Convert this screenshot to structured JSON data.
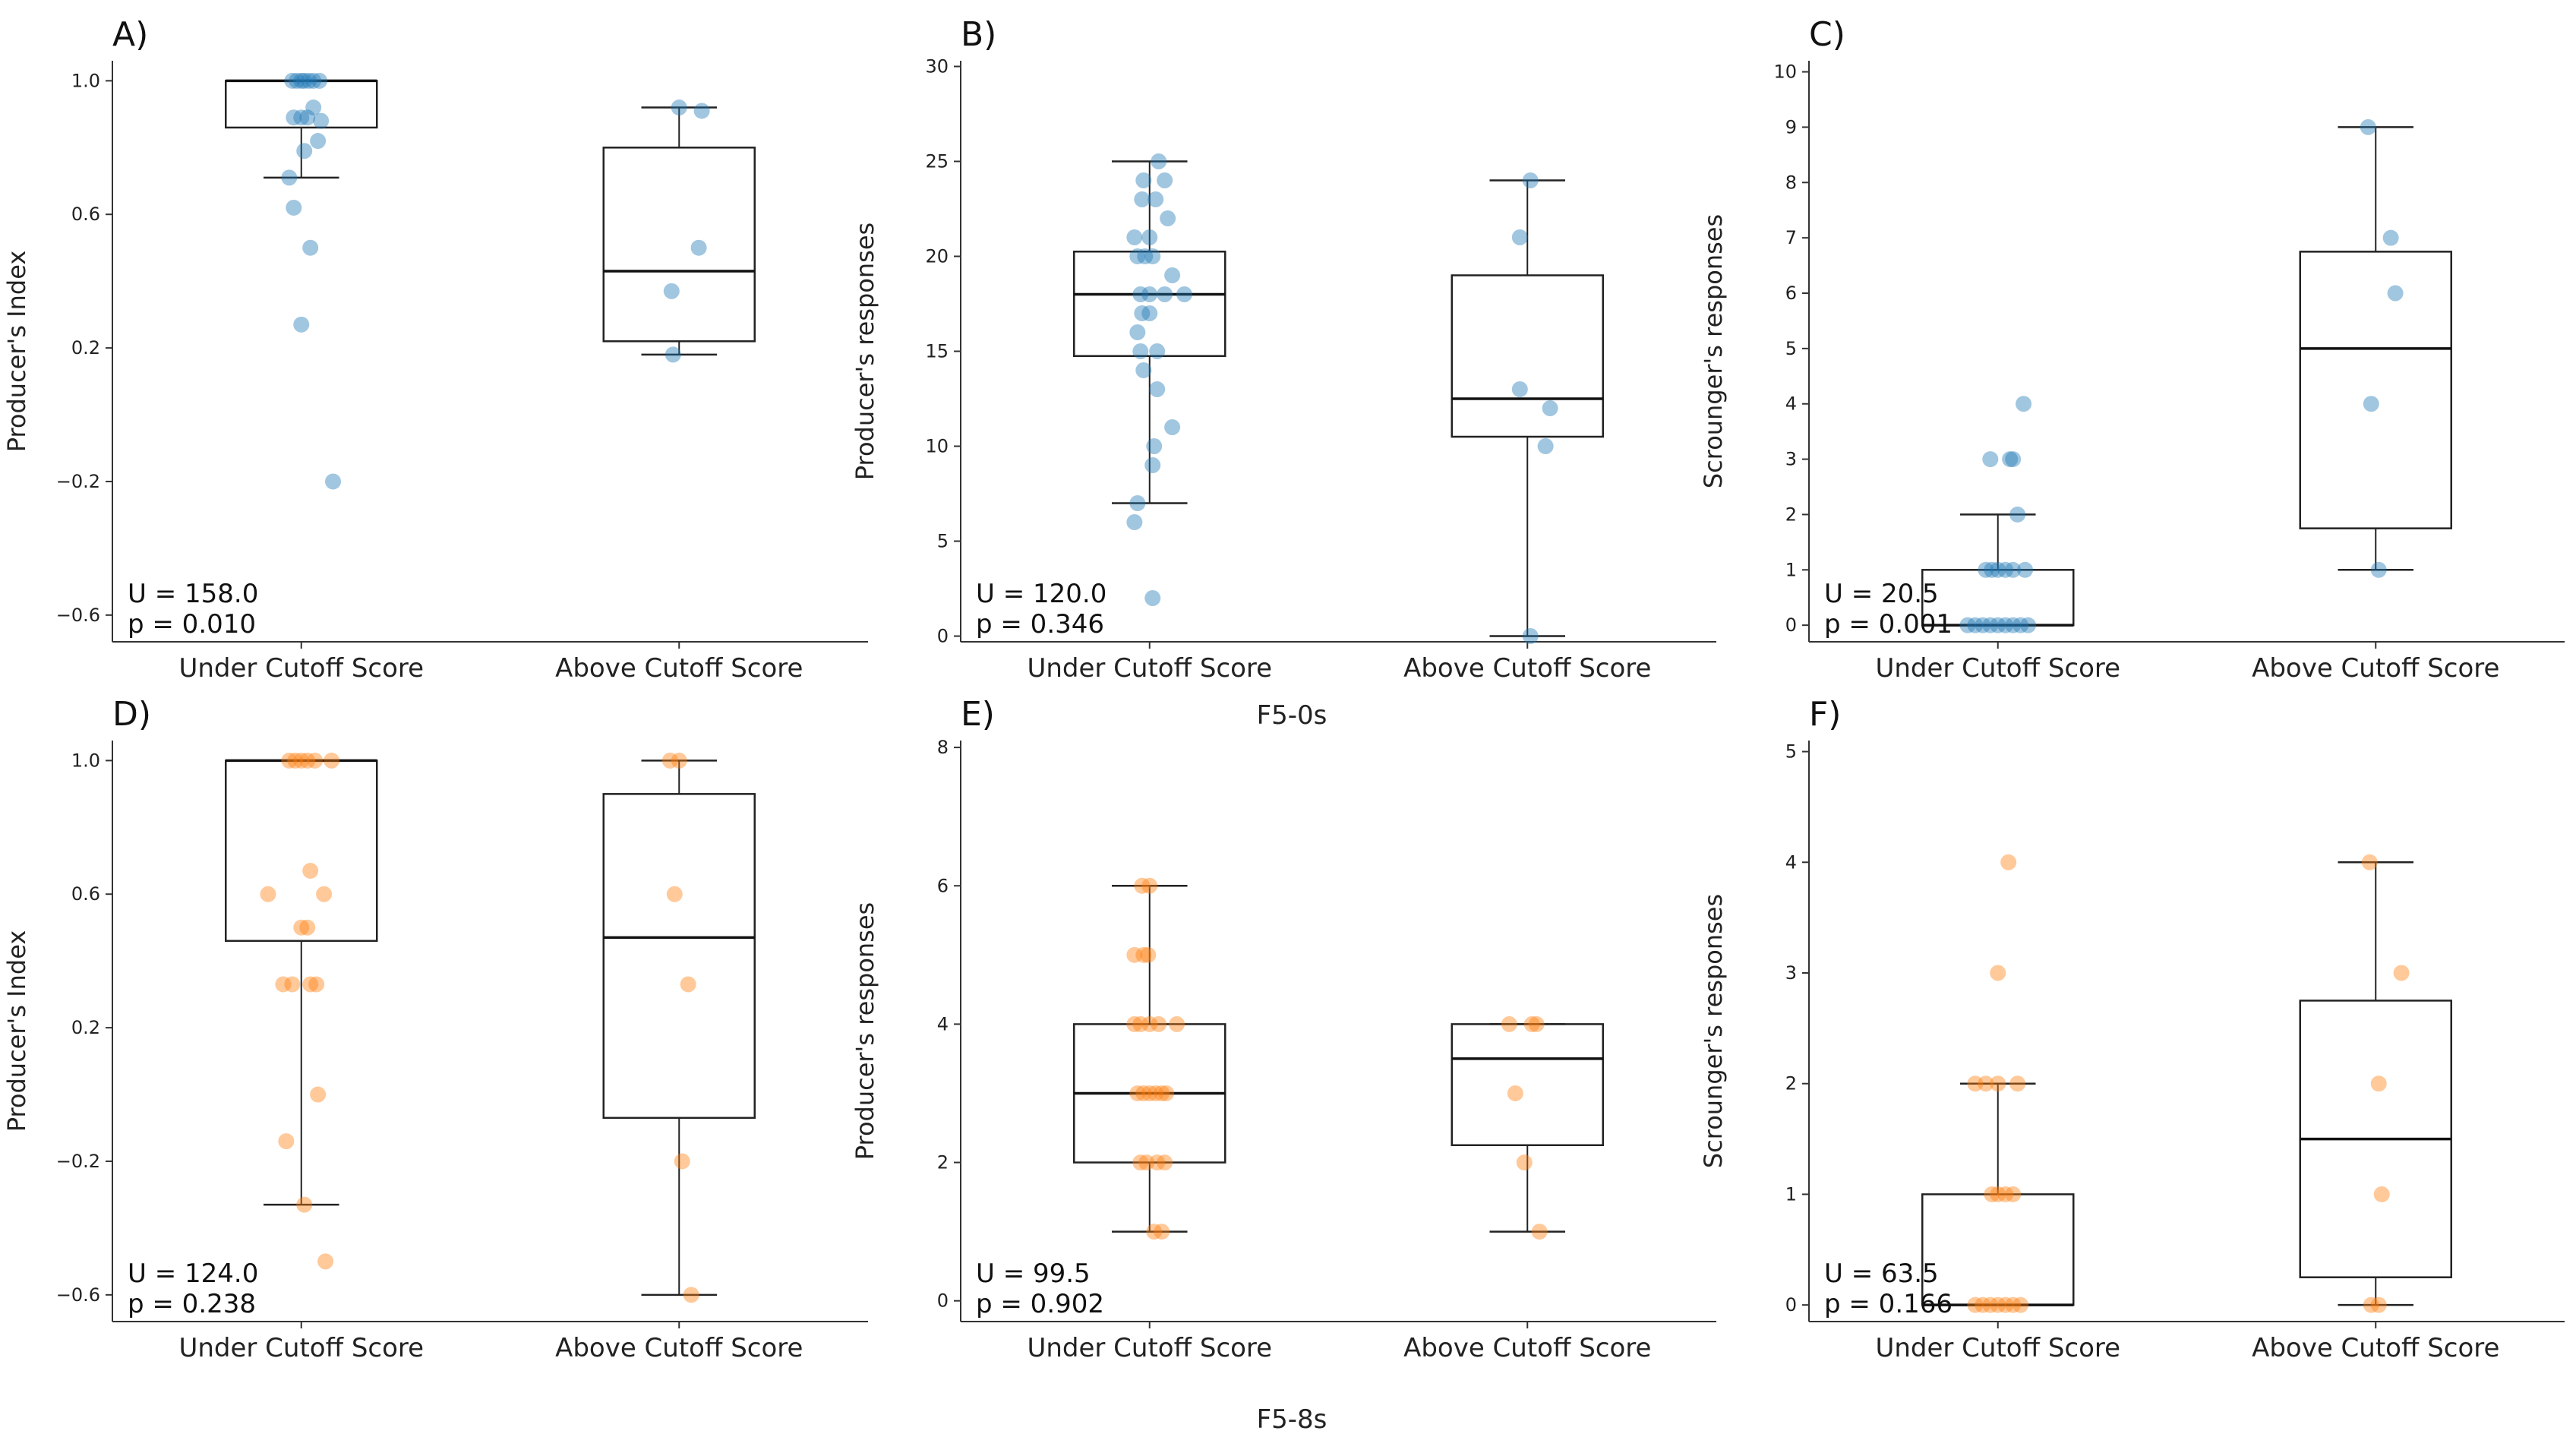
{
  "colors": {
    "blue": "#1f77b4",
    "orange": "#ff7f0e"
  },
  "chart_data": [
    {
      "panel": "A)",
      "type": "boxplot",
      "color": "#1f77b4",
      "ylabel": "Producer's Index",
      "yticks": [
        -0.6,
        -0.2,
        0.2,
        0.6,
        1.0
      ],
      "ylim": [
        -0.68,
        1.06
      ],
      "categories": [
        "Under Cutoff Score",
        "Above Cutoff Score"
      ],
      "stat": {
        "U": "U = 158.0",
        "p": "p = 0.010"
      },
      "boxes": [
        {
          "whislo": 0.71,
          "q1": 0.86,
          "med": 1.0,
          "q3": 1.0,
          "whishi": 1.0,
          "points": [
            [
              0,
              1.0
            ],
            [
              -0.06,
              1.0
            ],
            [
              -0.03,
              1.0
            ],
            [
              0.02,
              1.0
            ],
            [
              0.05,
              1.0
            ],
            [
              0.08,
              1.0
            ],
            [
              0.12,
              1.0
            ],
            [
              -0.05,
              0.89
            ],
            [
              0.0,
              0.89
            ],
            [
              0.04,
              0.89
            ],
            [
              0.08,
              0.92
            ],
            [
              0.13,
              0.88
            ],
            [
              0.02,
              0.79
            ],
            [
              0.11,
              0.82
            ],
            [
              -0.08,
              0.71
            ],
            [
              -0.05,
              0.62
            ],
            [
              0.06,
              0.5
            ],
            [
              0.0,
              0.27
            ],
            [
              0.21,
              -0.2
            ]
          ]
        },
        {
          "whislo": 0.18,
          "q1": 0.22,
          "med": 0.43,
          "q3": 0.8,
          "whishi": 0.92,
          "points": [
            [
              0,
              0.92
            ],
            [
              0.15,
              0.91
            ],
            [
              0.13,
              0.5
            ],
            [
              -0.05,
              0.37
            ],
            [
              -0.04,
              0.18
            ]
          ]
        }
      ]
    },
    {
      "panel": "B)",
      "type": "boxplot",
      "color": "#1f77b4",
      "ylabel": "Producer's responses",
      "yticks": [
        0,
        5,
        10,
        15,
        20,
        25,
        30
      ],
      "ylim": [
        -0.3,
        30.3
      ],
      "categories": [
        "Under Cutoff Score",
        "Above Cutoff Score"
      ],
      "stat": {
        "U": "U = 120.0",
        "p": "p = 0.346"
      },
      "boxes": [
        {
          "whislo": 7,
          "q1": 14.75,
          "med": 18,
          "q3": 20.25,
          "whishi": 25,
          "points": [
            [
              0.06,
              25
            ],
            [
              -0.04,
              24
            ],
            [
              0.1,
              24
            ],
            [
              -0.05,
              23
            ],
            [
              0.04,
              23
            ],
            [
              0.12,
              22
            ],
            [
              -0.1,
              21
            ],
            [
              0.0,
              21
            ],
            [
              -0.08,
              20
            ],
            [
              -0.03,
              20
            ],
            [
              0.02,
              20
            ],
            [
              0.15,
              19
            ],
            [
              -0.06,
              18
            ],
            [
              0.0,
              18
            ],
            [
              0.1,
              18
            ],
            [
              0.23,
              18
            ],
            [
              -0.05,
              17
            ],
            [
              0.0,
              17
            ],
            [
              -0.08,
              16
            ],
            [
              -0.06,
              15
            ],
            [
              0.05,
              15
            ],
            [
              -0.04,
              14
            ],
            [
              0.05,
              13
            ],
            [
              0.15,
              11
            ],
            [
              0.03,
              10
            ],
            [
              0.02,
              9
            ],
            [
              -0.08,
              7
            ],
            [
              -0.1,
              6
            ],
            [
              0.02,
              2
            ]
          ]
        },
        {
          "whislo": 0,
          "q1": 10.5,
          "med": 12.5,
          "q3": 19,
          "whishi": 24,
          "points": [
            [
              0.02,
              24
            ],
            [
              -0.05,
              21
            ],
            [
              -0.05,
              13
            ],
            [
              0.15,
              12
            ],
            [
              0.12,
              10
            ],
            [
              0.02,
              0
            ]
          ]
        }
      ]
    },
    {
      "panel": "C)",
      "type": "boxplot",
      "color": "#1f77b4",
      "ylabel": "Scrounger's responses",
      "yticks": [
        0,
        1,
        2,
        3,
        4,
        5,
        6,
        7,
        8,
        9,
        10
      ],
      "ylim": [
        -0.3,
        10.2
      ],
      "categories": [
        "Under Cutoff Score",
        "Above Cutoff Score"
      ],
      "stat": {
        "U": "U = 20.5",
        "p": "p = 0.001"
      },
      "boxes": [
        {
          "whislo": 0,
          "q1": 0,
          "med": 0,
          "q3": 1,
          "whishi": 2,
          "points": [
            [
              0.17,
              4
            ],
            [
              -0.05,
              3
            ],
            [
              0.08,
              3
            ],
            [
              0.1,
              3
            ],
            [
              0.13,
              2
            ],
            [
              -0.08,
              1
            ],
            [
              -0.04,
              1
            ],
            [
              0.0,
              1
            ],
            [
              0.05,
              1
            ],
            [
              0.1,
              1
            ],
            [
              0.18,
              1
            ],
            [
              -0.2,
              0
            ],
            [
              -0.15,
              0
            ],
            [
              -0.1,
              0
            ],
            [
              -0.05,
              0
            ],
            [
              0.0,
              0
            ],
            [
              0.05,
              0
            ],
            [
              0.1,
              0
            ],
            [
              0.15,
              0
            ],
            [
              0.2,
              0
            ]
          ]
        },
        {
          "whislo": 1,
          "q1": 1.75,
          "med": 5,
          "q3": 6.75,
          "whishi": 9,
          "points": [
            [
              -0.05,
              9
            ],
            [
              0.1,
              7
            ],
            [
              0.13,
              6
            ],
            [
              -0.03,
              4
            ],
            [
              0.02,
              1
            ]
          ]
        }
      ]
    },
    {
      "panel": "D)",
      "type": "boxplot",
      "color": "#ff7f0e",
      "ylabel": "Producer's Index",
      "yticks": [
        -0.6,
        -0.2,
        0.2,
        0.6,
        1.0
      ],
      "ylim": [
        -0.68,
        1.06
      ],
      "categories": [
        "Under Cutoff Score",
        "Above Cutoff Score"
      ],
      "stat": {
        "U": "U = 124.0",
        "p": "p = 0.238"
      },
      "boxes": [
        {
          "whislo": -0.33,
          "q1": 0.46,
          "med": 1.0,
          "q3": 1.0,
          "whishi": 1.0,
          "points": [
            [
              -0.08,
              1.0
            ],
            [
              -0.04,
              1.0
            ],
            [
              0.0,
              1.0
            ],
            [
              0.04,
              1.0
            ],
            [
              0.09,
              1.0
            ],
            [
              0.2,
              1.0
            ],
            [
              0.06,
              0.67
            ],
            [
              -0.22,
              0.6
            ],
            [
              0.15,
              0.6
            ],
            [
              0.0,
              0.5
            ],
            [
              0.04,
              0.5
            ],
            [
              -0.12,
              0.33
            ],
            [
              -0.06,
              0.33
            ],
            [
              0.06,
              0.33
            ],
            [
              0.1,
              0.33
            ],
            [
              0.11,
              0.0
            ],
            [
              -0.1,
              -0.14
            ],
            [
              0.02,
              -0.33
            ],
            [
              0.16,
              -0.5
            ]
          ]
        },
        {
          "whislo": -0.6,
          "q1": -0.07,
          "med": 0.47,
          "q3": 0.9,
          "whishi": 1.0,
          "points": [
            [
              -0.06,
              1.0
            ],
            [
              0.0,
              1.0
            ],
            [
              -0.03,
              0.6
            ],
            [
              0.06,
              0.33
            ],
            [
              0.02,
              -0.2
            ],
            [
              0.08,
              -0.6
            ]
          ]
        }
      ]
    },
    {
      "panel": "E)",
      "type": "boxplot",
      "color": "#ff7f0e",
      "ylabel": "Producer's responses",
      "yticks": [
        0,
        2,
        4,
        6,
        8
      ],
      "ylim": [
        -0.3,
        8.1
      ],
      "categories": [
        "Under Cutoff Score",
        "Above Cutoff Score"
      ],
      "stat": {
        "U": "U = 99.5",
        "p": "p = 0.902"
      },
      "boxes": [
        {
          "whislo": 1,
          "q1": 2,
          "med": 3,
          "q3": 4,
          "whishi": 6,
          "points": [
            [
              -0.05,
              6
            ],
            [
              0.0,
              6
            ],
            [
              -0.1,
              5
            ],
            [
              -0.04,
              5
            ],
            [
              -0.01,
              5
            ],
            [
              -0.1,
              4
            ],
            [
              -0.06,
              4
            ],
            [
              0.0,
              4
            ],
            [
              0.06,
              4
            ],
            [
              0.18,
              4
            ],
            [
              -0.08,
              3
            ],
            [
              -0.04,
              3
            ],
            [
              0.0,
              3
            ],
            [
              0.04,
              3
            ],
            [
              0.08,
              3
            ],
            [
              0.11,
              3
            ],
            [
              -0.06,
              2
            ],
            [
              -0.02,
              2
            ],
            [
              0.05,
              2
            ],
            [
              0.1,
              2
            ],
            [
              0.03,
              1
            ],
            [
              0.08,
              1
            ]
          ]
        },
        {
          "whislo": 1,
          "q1": 2.25,
          "med": 3.5,
          "q3": 4,
          "whishi": 4,
          "points": [
            [
              -0.12,
              4
            ],
            [
              0.03,
              4
            ],
            [
              0.06,
              4
            ],
            [
              -0.08,
              3
            ],
            [
              -0.02,
              2
            ],
            [
              0.08,
              1
            ]
          ]
        }
      ]
    },
    {
      "panel": "F)",
      "type": "boxplot",
      "color": "#ff7f0e",
      "ylabel": "Scrounger's responses",
      "yticks": [
        0,
        1,
        2,
        3,
        4,
        5
      ],
      "ylim": [
        -0.15,
        5.1
      ],
      "categories": [
        "Under Cutoff Score",
        "Above Cutoff Score"
      ],
      "stat": {
        "U": "U = 63.5",
        "p": "p = 0.166"
      },
      "boxes": [
        {
          "whislo": 0,
          "q1": 0,
          "med": 0,
          "q3": 1,
          "whishi": 2,
          "points": [
            [
              0.07,
              4
            ],
            [
              0.0,
              3
            ],
            [
              -0.15,
              2
            ],
            [
              -0.08,
              2
            ],
            [
              0.0,
              2
            ],
            [
              0.13,
              2
            ],
            [
              -0.04,
              1
            ],
            [
              0.0,
              1
            ],
            [
              0.05,
              1
            ],
            [
              0.1,
              1
            ],
            [
              -0.15,
              0
            ],
            [
              -0.1,
              0
            ],
            [
              -0.05,
              0
            ],
            [
              0.0,
              0
            ],
            [
              0.05,
              0
            ],
            [
              0.1,
              0
            ],
            [
              0.15,
              0
            ]
          ]
        },
        {
          "whislo": 0,
          "q1": 0.25,
          "med": 1.5,
          "q3": 2.75,
          "whishi": 4,
          "points": [
            [
              -0.04,
              4
            ],
            [
              0.17,
              3
            ],
            [
              0.02,
              2
            ],
            [
              0.04,
              1
            ],
            [
              -0.03,
              0
            ],
            [
              0.02,
              0
            ]
          ]
        }
      ]
    }
  ],
  "group_labels": [
    "F5-0s",
    "F5-8s"
  ]
}
